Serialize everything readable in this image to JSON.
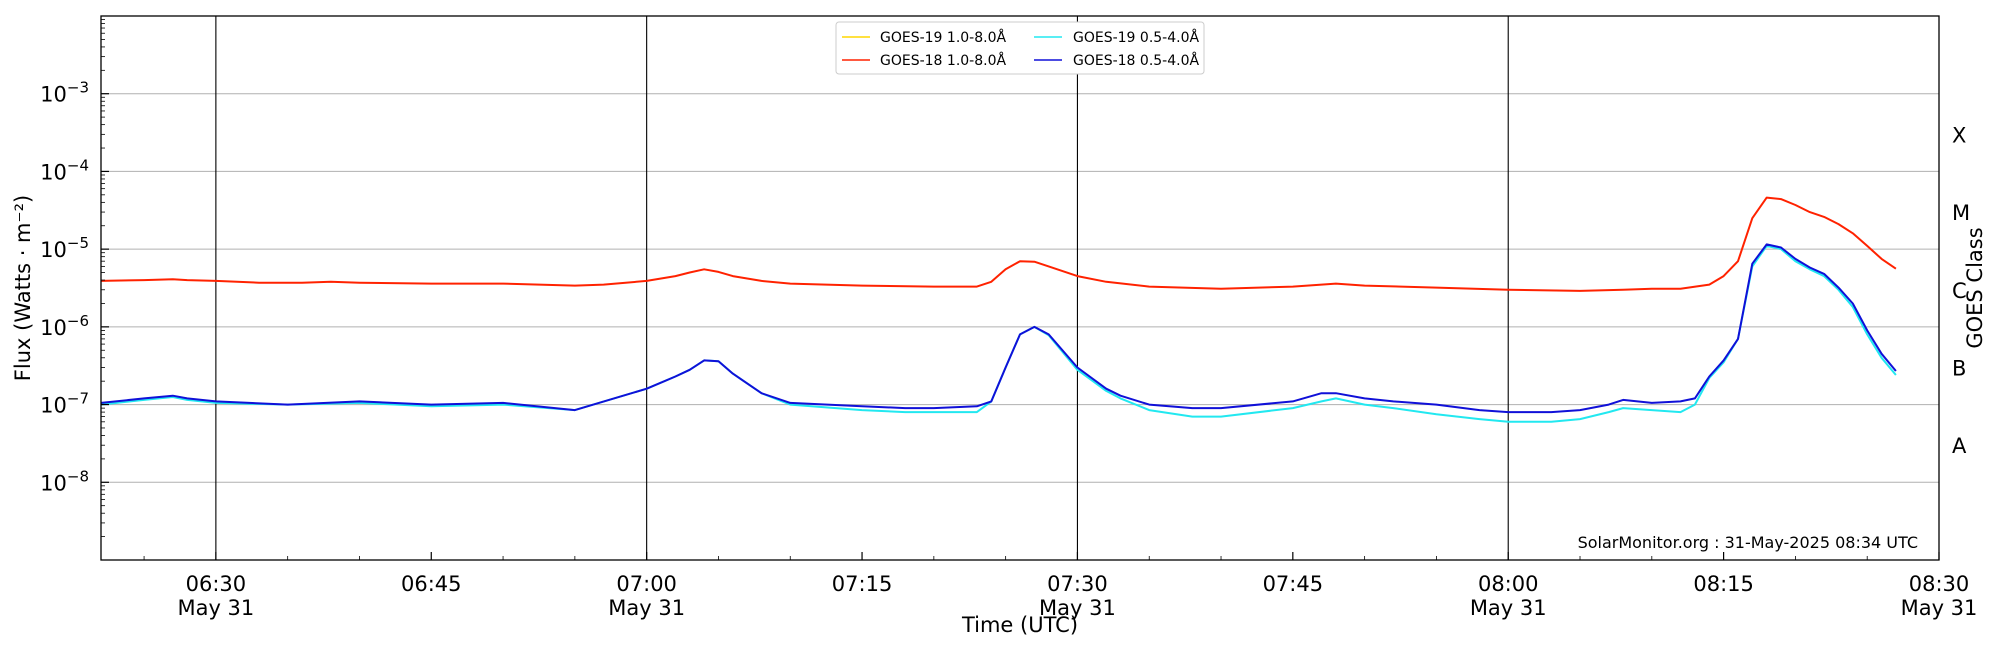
{
  "chart_data": {
    "type": "line",
    "xlabel": "Time (UTC)",
    "ylabel": "Flux (Watts · m⁻²)",
    "y2label": "GOES Class",
    "y_scale": "log",
    "ylim": [
      1e-09,
      0.01
    ],
    "xlim": [
      "06:22",
      "08:30"
    ],
    "yticks": [
      {
        "value": 1e-08,
        "base": "10",
        "exp": "−8"
      },
      {
        "value": 1e-07,
        "base": "10",
        "exp": "−7"
      },
      {
        "value": 1e-06,
        "base": "10",
        "exp": "−6"
      },
      {
        "value": 1e-05,
        "base": "10",
        "exp": "−5"
      },
      {
        "value": 0.0001,
        "base": "10",
        "exp": "−4"
      },
      {
        "value": 0.001,
        "base": "10",
        "exp": "−3"
      }
    ],
    "xticks": [
      {
        "time": "06:30",
        "label": "06:30",
        "sublabel": "May 31"
      },
      {
        "time": "06:45",
        "label": "06:45",
        "sublabel": ""
      },
      {
        "time": "07:00",
        "label": "07:00",
        "sublabel": "May 31"
      },
      {
        "time": "07:15",
        "label": "07:15",
        "sublabel": ""
      },
      {
        "time": "07:30",
        "label": "07:30",
        "sublabel": "May 31"
      },
      {
        "time": "07:45",
        "label": "07:45",
        "sublabel": ""
      },
      {
        "time": "08:00",
        "label": "08:00",
        "sublabel": "May 31"
      },
      {
        "time": "08:15",
        "label": "08:15",
        "sublabel": ""
      },
      {
        "time": "08:30",
        "label": "08:30",
        "sublabel": "May 31"
      }
    ],
    "vlines": [
      "06:30",
      "07:00",
      "07:30",
      "08:00"
    ],
    "grid": "horizontal",
    "classes": [
      {
        "label": "A",
        "value": 3e-08
      },
      {
        "label": "B",
        "value": 3e-07
      },
      {
        "label": "C",
        "value": 3e-06
      },
      {
        "label": "M",
        "value": 3e-05
      },
      {
        "label": "X",
        "value": 0.0003
      }
    ],
    "legend_position": "top-center",
    "credit": "SolarMonitor.org : 31-May-2025 08:34 UTC",
    "series": [
      {
        "name": "GOES-19 1.0-8.0Å",
        "color": "#ffd700",
        "x": [],
        "y": []
      },
      {
        "name": "GOES-18 1.0-8.0Å",
        "color": "#ff2200",
        "x": [
          "06:22",
          "06:25",
          "06:27",
          "06:28",
          "06:30",
          "06:33",
          "06:36",
          "06:38",
          "06:40",
          "06:45",
          "06:50",
          "06:55",
          "06:57",
          "07:00",
          "07:02",
          "07:03",
          "07:04",
          "07:05",
          "07:06",
          "07:08",
          "07:10",
          "07:15",
          "07:20",
          "07:23",
          "07:24",
          "07:25",
          "07:26",
          "07:27",
          "07:28",
          "07:30",
          "07:32",
          "07:35",
          "07:40",
          "07:45",
          "07:48",
          "07:50",
          "07:55",
          "08:00",
          "08:05",
          "08:08",
          "08:10",
          "08:12",
          "08:14",
          "08:15",
          "08:16",
          "08:17",
          "08:18",
          "08:19",
          "08:20",
          "08:21",
          "08:22",
          "08:23",
          "08:24",
          "08:25",
          "08:26",
          "08:27"
        ],
        "y": [
          3.9e-06,
          4e-06,
          4.1e-06,
          4e-06,
          3.9e-06,
          3.7e-06,
          3.7e-06,
          3.8e-06,
          3.7e-06,
          3.6e-06,
          3.6e-06,
          3.4e-06,
          3.5e-06,
          3.9e-06,
          4.5e-06,
          5e-06,
          5.5e-06,
          5.1e-06,
          4.5e-06,
          3.9e-06,
          3.6e-06,
          3.4e-06,
          3.3e-06,
          3.3e-06,
          3.8e-06,
          5.5e-06,
          7e-06,
          6.9e-06,
          6e-06,
          4.5e-06,
          3.8e-06,
          3.3e-06,
          3.1e-06,
          3.3e-06,
          3.6e-06,
          3.4e-06,
          3.2e-06,
          3e-06,
          2.9e-06,
          3e-06,
          3.1e-06,
          3.1e-06,
          3.5e-06,
          4.5e-06,
          7e-06,
          2.5e-05,
          4.6e-05,
          4.4e-05,
          3.7e-05,
          3e-05,
          2.6e-05,
          2.1e-05,
          1.6e-05,
          1.1e-05,
          7.5e-06,
          5.6e-06
        ]
      },
      {
        "name": "GOES-19 0.5-4.0Å",
        "color": "#22e8f0",
        "x": [
          "06:22",
          "06:25",
          "06:27",
          "06:28",
          "06:30",
          "06:35",
          "06:40",
          "06:45",
          "06:50",
          "06:55",
          "07:00",
          "07:02",
          "07:03",
          "07:04",
          "07:05",
          "07:06",
          "07:08",
          "07:10",
          "07:15",
          "07:18",
          "07:20",
          "07:23",
          "07:24",
          "07:25",
          "07:26",
          "07:27",
          "07:28",
          "07:30",
          "07:32",
          "07:33",
          "07:35",
          "07:38",
          "07:40",
          "07:45",
          "07:47",
          "07:48",
          "07:50",
          "07:52",
          "07:55",
          "07:58",
          "08:00",
          "08:03",
          "08:05",
          "08:07",
          "08:08",
          "08:10",
          "08:12",
          "08:13",
          "08:14",
          "08:15",
          "08:16",
          "08:17",
          "08:18",
          "08:19",
          "08:20",
          "08:21",
          "08:22",
          "08:23",
          "08:24",
          "08:25",
          "08:26",
          "08:27"
        ],
        "y": [
          1e-07,
          1.15e-07,
          1.25e-07,
          1.15e-07,
          1.05e-07,
          1e-07,
          1.05e-07,
          9.5e-08,
          1e-07,
          8.5e-08,
          1.6e-07,
          2.3e-07,
          2.8e-07,
          3.7e-07,
          3.6e-07,
          2.5e-07,
          1.4e-07,
          1e-07,
          8.5e-08,
          8e-08,
          8e-08,
          8e-08,
          1.1e-07,
          3e-07,
          8e-07,
          1e-06,
          7.8e-07,
          2.8e-07,
          1.5e-07,
          1.2e-07,
          8.5e-08,
          7e-08,
          7e-08,
          9e-08,
          1.1e-07,
          1.2e-07,
          1e-07,
          9e-08,
          7.5e-08,
          6.5e-08,
          6e-08,
          6e-08,
          6.5e-08,
          8e-08,
          9e-08,
          8.5e-08,
          8e-08,
          1e-07,
          2.2e-07,
          3.5e-07,
          7e-07,
          6e-06,
          1.1e-05,
          1e-05,
          7e-06,
          5.5e-06,
          4.5e-06,
          3e-06,
          1.8e-06,
          8e-07,
          4e-07,
          2.4e-07
        ]
      },
      {
        "name": "GOES-18 0.5-4.0Å",
        "color": "#1010d8",
        "x": [
          "06:22",
          "06:25",
          "06:27",
          "06:28",
          "06:30",
          "06:35",
          "06:40",
          "06:45",
          "06:50",
          "06:55",
          "07:00",
          "07:02",
          "07:03",
          "07:04",
          "07:05",
          "07:06",
          "07:08",
          "07:10",
          "07:15",
          "07:18",
          "07:20",
          "07:23",
          "07:24",
          "07:25",
          "07:26",
          "07:27",
          "07:28",
          "07:30",
          "07:32",
          "07:33",
          "07:35",
          "07:38",
          "07:40",
          "07:45",
          "07:47",
          "07:48",
          "07:50",
          "07:52",
          "07:55",
          "07:58",
          "08:00",
          "08:03",
          "08:05",
          "08:07",
          "08:08",
          "08:10",
          "08:12",
          "08:13",
          "08:14",
          "08:15",
          "08:16",
          "08:17",
          "08:18",
          "08:19",
          "08:20",
          "08:21",
          "08:22",
          "08:23",
          "08:24",
          "08:25",
          "08:26",
          "08:27"
        ],
        "y": [
          1.05e-07,
          1.2e-07,
          1.3e-07,
          1.2e-07,
          1.1e-07,
          1e-07,
          1.1e-07,
          1e-07,
          1.05e-07,
          8.5e-08,
          1.6e-07,
          2.3e-07,
          2.8e-07,
          3.7e-07,
          3.6e-07,
          2.5e-07,
          1.4e-07,
          1.05e-07,
          9.5e-08,
          9e-08,
          9e-08,
          9.5e-08,
          1.1e-07,
          3e-07,
          8e-07,
          1e-06,
          8e-07,
          3e-07,
          1.6e-07,
          1.3e-07,
          1e-07,
          9e-08,
          9e-08,
          1.1e-07,
          1.4e-07,
          1.4e-07,
          1.2e-07,
          1.1e-07,
          1e-07,
          8.5e-08,
          8e-08,
          8e-08,
          8.5e-08,
          1e-07,
          1.15e-07,
          1.05e-07,
          1.1e-07,
          1.2e-07,
          2.3e-07,
          3.7e-07,
          7e-07,
          6.5e-06,
          1.15e-05,
          1.05e-05,
          7.5e-06,
          5.8e-06,
          4.8e-06,
          3.2e-06,
          2e-06,
          9e-07,
          4.5e-07,
          2.7e-07
        ]
      }
    ]
  }
}
